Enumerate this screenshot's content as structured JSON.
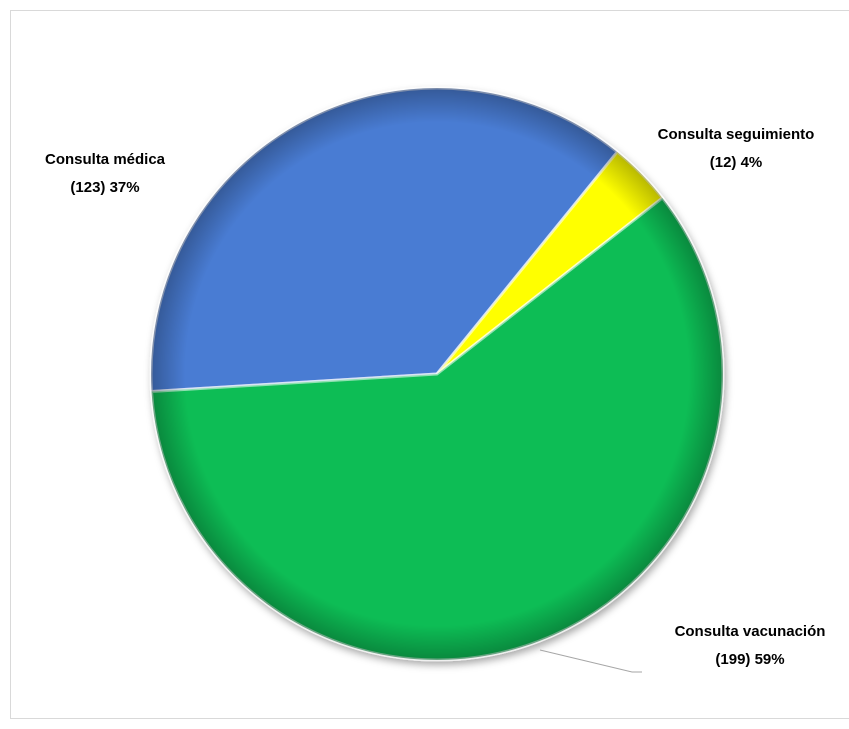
{
  "chart_data": {
    "type": "pie",
    "categories": [
      "Consulta médica",
      "Consulta seguimiento",
      "Consulta vacunación"
    ],
    "values": [
      123,
      12,
      199
    ],
    "value_labels": [
      "(123) 37%",
      "(12) 4%",
      "(199) 59%"
    ],
    "colors": [
      "#4a7bd3",
      "#ffff00",
      "#0bbd55"
    ]
  }
}
